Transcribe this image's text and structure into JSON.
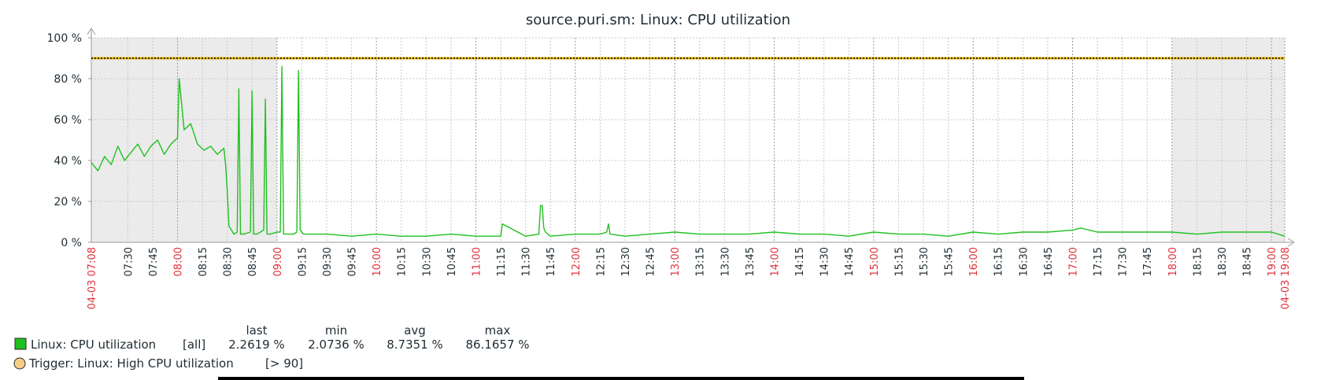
{
  "chart_data": {
    "type": "line",
    "title": "source.puri.sm: Linux: CPU utilization",
    "xlabel": "",
    "ylabel": "",
    "ylim": [
      0,
      100
    ],
    "y_ticks": [
      "0 %",
      "20 %",
      "40 %",
      "60 %",
      "80 %",
      "100 %"
    ],
    "y_tick_values": [
      0,
      20,
      40,
      60,
      80,
      100
    ],
    "x_range": [
      "07:08",
      "19:08"
    ],
    "x_start_label": "04-03 07:08",
    "x_end_label": "04-03 19:08",
    "x_ticks": [
      "07:30",
      "07:45",
      "08:00",
      "08:15",
      "08:30",
      "08:45",
      "09:00",
      "09:15",
      "09:30",
      "09:45",
      "10:00",
      "10:15",
      "10:30",
      "10:45",
      "11:00",
      "11:15",
      "11:30",
      "11:45",
      "12:00",
      "12:15",
      "12:30",
      "12:45",
      "13:00",
      "13:15",
      "13:30",
      "13:45",
      "14:00",
      "14:15",
      "14:30",
      "14:45",
      "15:00",
      "15:15",
      "15:30",
      "15:45",
      "16:00",
      "16:15",
      "16:30",
      "16:45",
      "17:00",
      "17:15",
      "17:30",
      "17:45",
      "18:00",
      "18:15",
      "18:30",
      "18:45",
      "19:00"
    ],
    "highlight_tick_color": "#e0303a",
    "tick_color": "#1f2c33",
    "grid": true,
    "legend_position": "bottom-left",
    "shaded_periods": [
      [
        "07:08",
        "09:00"
      ],
      [
        "18:00",
        "19:08"
      ]
    ],
    "series": [
      {
        "name": "Linux: CPU utilization",
        "color": "#1fc11f",
        "x": [
          "07:08",
          "07:12",
          "07:16",
          "07:20",
          "07:24",
          "07:28",
          "07:32",
          "07:36",
          "07:40",
          "07:44",
          "07:48",
          "07:52",
          "07:56",
          "08:00",
          "08:01",
          "08:04",
          "08:08",
          "08:12",
          "08:16",
          "08:20",
          "08:24",
          "08:28",
          "08:29",
          "08:30",
          "08:31",
          "08:34",
          "08:36",
          "08:37",
          "08:38",
          "08:40",
          "08:44",
          "08:45",
          "08:46",
          "08:48",
          "08:52",
          "08:53",
          "08:54",
          "08:56",
          "09:00",
          "09:02",
          "09:03",
          "09:04",
          "09:06",
          "09:10",
          "09:12",
          "09:13",
          "09:14",
          "09:16",
          "09:30",
          "09:45",
          "10:00",
          "10:15",
          "10:30",
          "10:45",
          "11:00",
          "11:15",
          "11:16",
          "11:30",
          "11:38",
          "11:39",
          "11:40",
          "11:41",
          "11:42",
          "11:45",
          "12:00",
          "12:15",
          "12:19",
          "12:20",
          "12:21",
          "12:30",
          "12:45",
          "13:00",
          "13:15",
          "13:30",
          "13:45",
          "14:00",
          "14:15",
          "14:30",
          "14:45",
          "15:00",
          "15:15",
          "15:30",
          "15:45",
          "16:00",
          "16:15",
          "16:30",
          "16:45",
          "17:00",
          "17:05",
          "17:15",
          "17:30",
          "17:45",
          "18:00",
          "18:15",
          "18:30",
          "18:45",
          "19:00",
          "19:08"
        ],
        "y": [
          39,
          35,
          42,
          38,
          47,
          40,
          44,
          48,
          42,
          47,
          50,
          43,
          48,
          51,
          80,
          55,
          58,
          48,
          45,
          47,
          43,
          46,
          38,
          25,
          8,
          4,
          5,
          75,
          4,
          4,
          5,
          74,
          4,
          4,
          6,
          70,
          4,
          4,
          5,
          5,
          86,
          4,
          4,
          4,
          5,
          84,
          6,
          4,
          4,
          3,
          4,
          3,
          3,
          4,
          3,
          3,
          9,
          3,
          4,
          18,
          18,
          7,
          5,
          3,
          4,
          4,
          5,
          9,
          4,
          3,
          4,
          5,
          4,
          4,
          4,
          5,
          4,
          4,
          3,
          5,
          4,
          4,
          3,
          5,
          4,
          5,
          5,
          6,
          7,
          5,
          5,
          5,
          5,
          4,
          5,
          5,
          5,
          3
        ]
      },
      {
        "name": "Trigger: Linux: High CPU utilization",
        "color": "#e8b800",
        "threshold": 90
      }
    ]
  },
  "legend": {
    "headers": {
      "last": "last",
      "min": "min",
      "avg": "avg",
      "max": "max"
    },
    "items": [
      {
        "label": "Linux: CPU utilization",
        "scope": "[all]",
        "last": "2.2619 %",
        "min": "2.0736 %",
        "avg": "8.7351 %",
        "max": "86.1657 %",
        "color": "#1fc11f"
      },
      {
        "label": "Trigger: Linux: High CPU utilization",
        "condition": "[> 90]",
        "color": "#f5cf86"
      }
    ]
  }
}
